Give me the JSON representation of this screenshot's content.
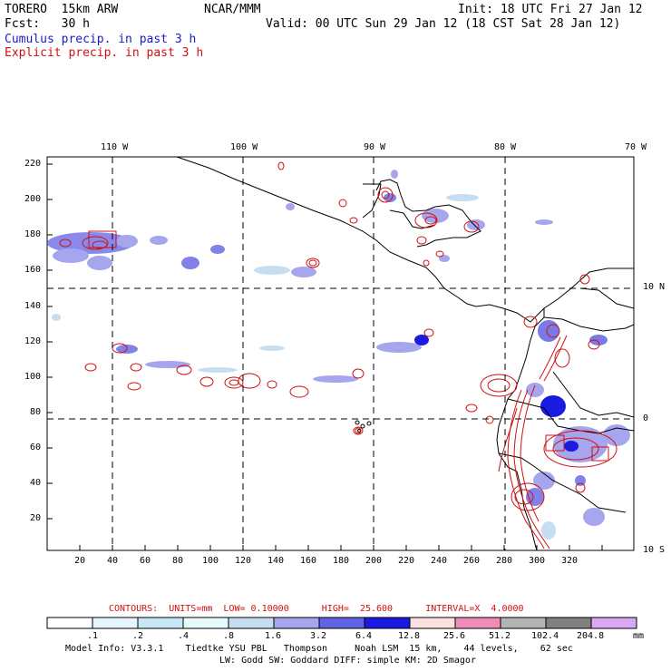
{
  "header": {
    "model_name": "TORERO  15km ARW",
    "center": "NCAR/MMM",
    "init": "Init: 18 UTC Fri 27 Jan 12",
    "fcst": "Fcst:   30 h",
    "valid": "Valid: 00 UTC Sun 29 Jan 12 (18 CST Sat 28 Jan 12)",
    "field1": "Cumulus precip. in past 3 h",
    "field2": "Explicit precip. in past 3 h"
  },
  "map": {
    "lon_labels": [
      "110 W",
      "100 W",
      "90 W",
      "80 W",
      "70 W"
    ],
    "lat_labels": [
      "10 N",
      "0",
      "10 S"
    ],
    "x_ticks": [
      "20",
      "40",
      "60",
      "80",
      "100",
      "120",
      "140",
      "160",
      "180",
      "200",
      "220",
      "240",
      "260",
      "280",
      "300",
      "320"
    ],
    "y_ticks": [
      "220",
      "200",
      "180",
      "160",
      "140",
      "120",
      "100",
      "80",
      "60",
      "40",
      "20"
    ]
  },
  "contour_info": {
    "label": "CONTOURS:  UNITS=mm  LOW= 0.10000      HIGH=  25.600      INTERVAL=X  4.0000"
  },
  "colorbar": {
    "labels": [
      ".1",
      ".2",
      ".4",
      ".8",
      "1.6",
      "3.2",
      "6.4",
      "12.8",
      "25.6",
      "51.2",
      "102.4",
      "204.8"
    ],
    "unit": "mm",
    "colors": [
      "#ffffff",
      "#e6f4fb",
      "#c8e8f5",
      "#e8fbfb",
      "#c6def2",
      "#a6a6ee",
      "#6262e4",
      "#1a1ae0",
      "#fce0e0",
      "#f08cb8",
      "#b4b4b4",
      "#808080",
      "#d8a8f4"
    ]
  },
  "footer": {
    "line1": "Model Info: V3.3.1    Tiedtke YSU PBL   Thompson     Noah LSM  15 km,    44 levels,    62 sec",
    "line2": "LW: Godd SW: Goddard DIFF: simple KM: 2D Smagor"
  },
  "colors": {
    "cumulus": "#1a1ac8",
    "explicit": "#d01010",
    "coast": "#000000"
  }
}
